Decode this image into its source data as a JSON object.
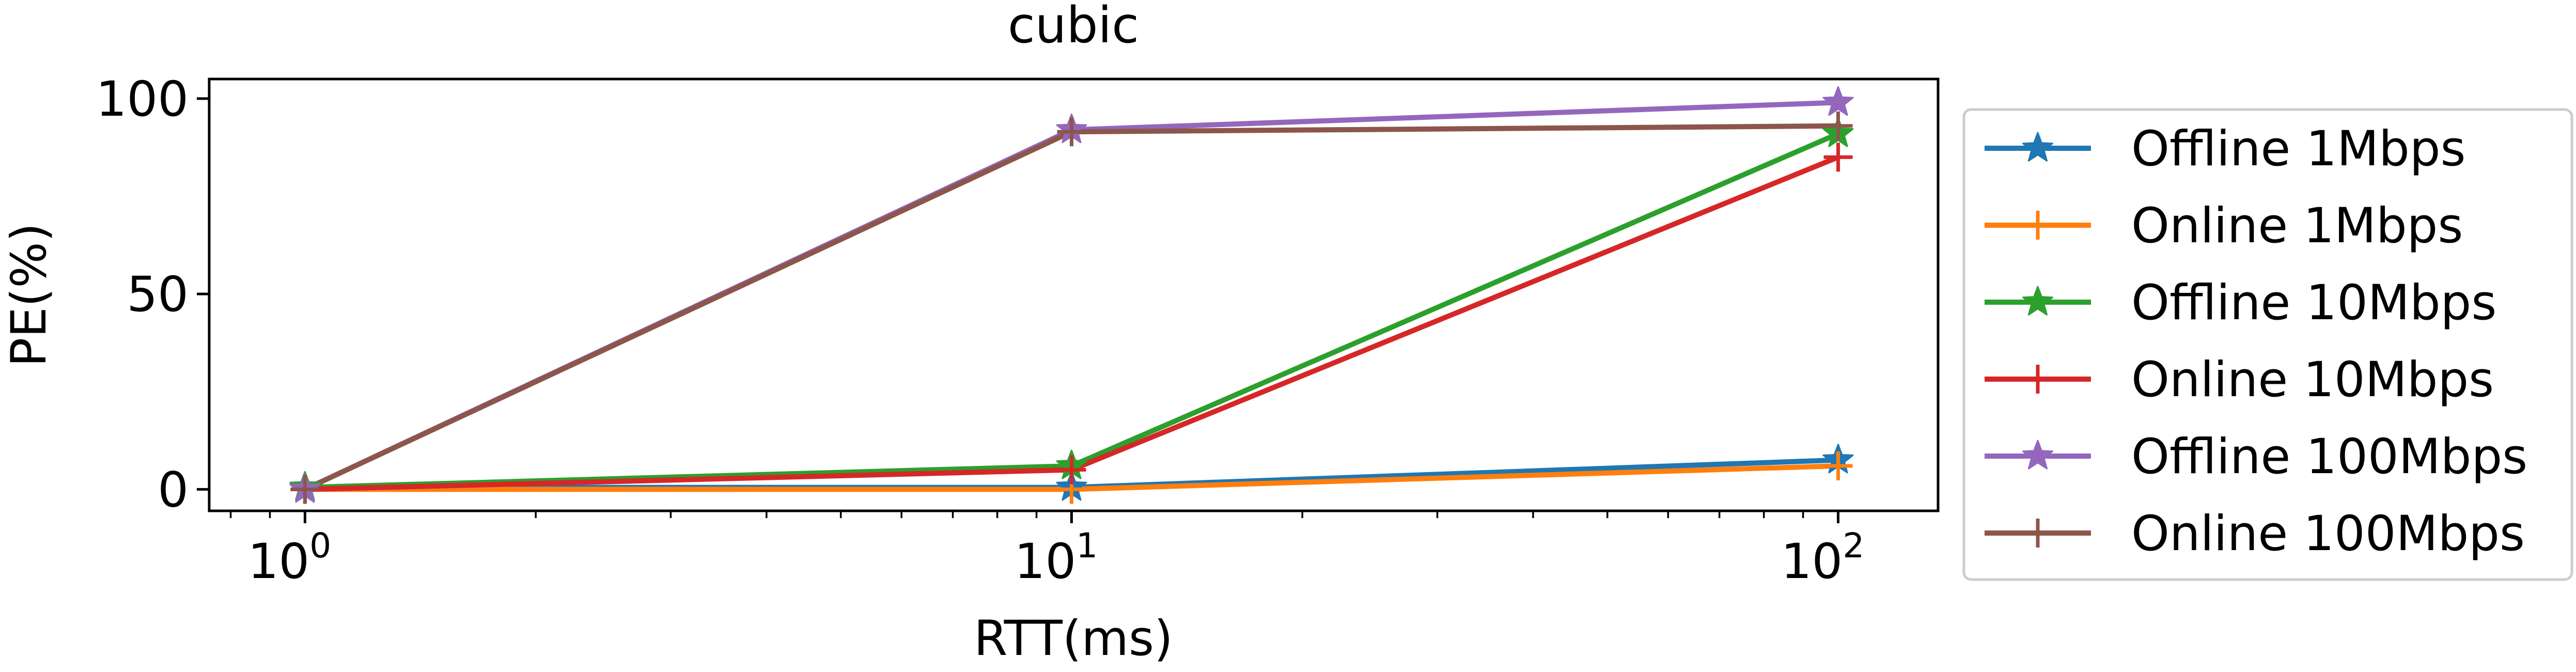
{
  "chart_data": {
    "type": "line",
    "title": "cubic",
    "xlabel": "RTT(ms)",
    "ylabel": "PE(%)",
    "xscale": "log",
    "xlim": [
      0.75,
      135
    ],
    "ylim": [
      -5.5,
      105
    ],
    "x": [
      1,
      10,
      100
    ],
    "x_tick_values": [
      1,
      10,
      100
    ],
    "x_tick_labels": [
      {
        "base": "10",
        "exp": "0"
      },
      {
        "base": "10",
        "exp": "1"
      },
      {
        "base": "10",
        "exp": "2"
      }
    ],
    "y_ticks": [
      0,
      50,
      100
    ],
    "y_tick_labels": [
      "0",
      "50",
      "100"
    ],
    "grid": false,
    "legend_position": "outside-right",
    "series": [
      {
        "name": "Offline 1Mbps",
        "values": [
          0.5,
          0.5,
          7.5
        ],
        "color": "#1f77b4",
        "marker": "star"
      },
      {
        "name": "Online 1Mbps",
        "values": [
          0.0,
          0.0,
          6.0
        ],
        "color": "#ff7f0e",
        "marker": "plus"
      },
      {
        "name": "Offline 10Mbps",
        "values": [
          0.5,
          6.0,
          91.0
        ],
        "color": "#2ca02c",
        "marker": "star"
      },
      {
        "name": "Online 10Mbps",
        "values": [
          0.0,
          5.0,
          85.0
        ],
        "color": "#d62728",
        "marker": "plus"
      },
      {
        "name": "Offline 100Mbps",
        "values": [
          0.0,
          92.0,
          99.0
        ],
        "color": "#9467bd",
        "marker": "star"
      },
      {
        "name": "Online 100Mbps",
        "values": [
          0.0,
          91.5,
          93.0
        ],
        "color": "#8c564b",
        "marker": "plus"
      }
    ]
  }
}
